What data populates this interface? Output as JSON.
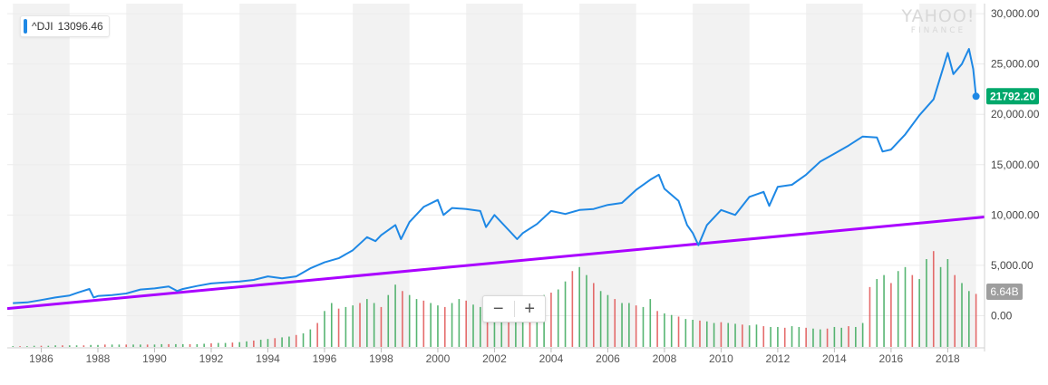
{
  "legend": {
    "symbol": "^DJI",
    "value": "13096.46",
    "color": "#1e88e5"
  },
  "brand": {
    "line1": "YAHOO!",
    "line2": "FINANCE"
  },
  "zoom": {
    "minus_label": "−",
    "plus_label": "+"
  },
  "last_price_label": "21792.20",
  "volume_label": "6.64B",
  "colors": {
    "price_line": "#1e88e5",
    "trend_line": "#aa00ff",
    "last_price_badge": "#00a86b",
    "volume_badge": "#9e9e9e",
    "volume_up": "#3aa859",
    "volume_down": "#e05252",
    "band_shade": "#f2f2f2"
  },
  "chart_data": {
    "type": "line",
    "x_axis": {
      "tick_labels": [
        "1986",
        "1988",
        "1990",
        "1992",
        "1994",
        "1996",
        "1998",
        "2000",
        "2002",
        "2004",
        "2006",
        "2008",
        "2010",
        "2012",
        "2014",
        "2016",
        "2018"
      ],
      "xlim": [
        1984.8,
        2019.3
      ],
      "alternating_bands": true
    },
    "y_axis": {
      "tick_labels": [
        "30,000.00",
        "25,000.00",
        "20,000.00",
        "15,000.00",
        "10,000.00",
        "5,000.00",
        "0.00"
      ],
      "ylim": [
        -3200,
        31000
      ],
      "position": "right",
      "grid": true
    },
    "legend_position": "top-left",
    "series": [
      {
        "name": "^DJI",
        "points": [
          [
            1985.0,
            1250
          ],
          [
            1985.5,
            1320
          ],
          [
            1986.0,
            1550
          ],
          [
            1986.5,
            1800
          ],
          [
            1987.0,
            2000
          ],
          [
            1987.3,
            2300
          ],
          [
            1987.7,
            2650
          ],
          [
            1987.85,
            1800
          ],
          [
            1988.0,
            1950
          ],
          [
            1988.5,
            2050
          ],
          [
            1989.0,
            2200
          ],
          [
            1989.5,
            2600
          ],
          [
            1990.0,
            2700
          ],
          [
            1990.5,
            2900
          ],
          [
            1990.8,
            2450
          ],
          [
            1991.0,
            2650
          ],
          [
            1991.5,
            2950
          ],
          [
            1992.0,
            3200
          ],
          [
            1992.5,
            3300
          ],
          [
            1993.0,
            3400
          ],
          [
            1993.5,
            3550
          ],
          [
            1994.0,
            3900
          ],
          [
            1994.5,
            3700
          ],
          [
            1995.0,
            3900
          ],
          [
            1995.5,
            4700
          ],
          [
            1996.0,
            5300
          ],
          [
            1996.5,
            5700
          ],
          [
            1997.0,
            6500
          ],
          [
            1997.5,
            7800
          ],
          [
            1997.8,
            7400
          ],
          [
            1998.0,
            8000
          ],
          [
            1998.5,
            9000
          ],
          [
            1998.7,
            7600
          ],
          [
            1999.0,
            9300
          ],
          [
            1999.5,
            10800
          ],
          [
            2000.0,
            11500
          ],
          [
            2000.2,
            10000
          ],
          [
            2000.5,
            10700
          ],
          [
            2001.0,
            10600
          ],
          [
            2001.5,
            10400
          ],
          [
            2001.7,
            8800
          ],
          [
            2002.0,
            10000
          ],
          [
            2002.5,
            8500
          ],
          [
            2002.8,
            7600
          ],
          [
            2003.0,
            8200
          ],
          [
            2003.5,
            9100
          ],
          [
            2004.0,
            10400
          ],
          [
            2004.5,
            10100
          ],
          [
            2005.0,
            10500
          ],
          [
            2005.5,
            10600
          ],
          [
            2006.0,
            11000
          ],
          [
            2006.5,
            11200
          ],
          [
            2007.0,
            12500
          ],
          [
            2007.5,
            13500
          ],
          [
            2007.8,
            14000
          ],
          [
            2008.0,
            12600
          ],
          [
            2008.5,
            11400
          ],
          [
            2008.8,
            9000
          ],
          [
            2009.0,
            8200
          ],
          [
            2009.2,
            7000
          ],
          [
            2009.5,
            9000
          ],
          [
            2010.0,
            10500
          ],
          [
            2010.5,
            10000
          ],
          [
            2011.0,
            11800
          ],
          [
            2011.5,
            12300
          ],
          [
            2011.7,
            10900
          ],
          [
            2012.0,
            12800
          ],
          [
            2012.5,
            13000
          ],
          [
            2013.0,
            14000
          ],
          [
            2013.5,
            15300
          ],
          [
            2014.0,
            16100
          ],
          [
            2014.5,
            16900
          ],
          [
            2015.0,
            17800
          ],
          [
            2015.5,
            17700
          ],
          [
            2015.7,
            16300
          ],
          [
            2016.0,
            16500
          ],
          [
            2016.5,
            18000
          ],
          [
            2017.0,
            19900
          ],
          [
            2017.5,
            21500
          ],
          [
            2018.0,
            26100
          ],
          [
            2018.2,
            24000
          ],
          [
            2018.5,
            25000
          ],
          [
            2018.75,
            26500
          ],
          [
            2018.9,
            24500
          ],
          [
            2019.0,
            21792.2
          ]
        ]
      }
    ],
    "trend_line": {
      "points": [
        [
          1984.8,
          700
        ],
        [
          2019.3,
          9800
        ]
      ]
    },
    "volume": {
      "label_latest": "6.64B",
      "bars_billions": [
        0.1,
        0.1,
        0.1,
        0.15,
        0.15,
        0.15,
        0.2,
        0.2,
        0.2,
        0.2,
        0.2,
        0.25,
        0.25,
        0.3,
        0.3,
        0.3,
        0.3,
        0.3,
        0.3,
        0.3,
        0.3,
        0.35,
        0.35,
        0.35,
        0.35,
        0.35,
        0.35,
        0.4,
        0.45,
        0.5,
        0.5,
        0.55,
        0.6,
        0.7,
        0.8,
        0.9,
        1.0,
        1.1,
        1.2,
        1.3,
        1.5,
        1.7,
        2.2,
        3.0,
        4.5,
        5.5,
        4.8,
        5.0,
        5.2,
        5.5,
        6.0,
        5.5,
        5.0,
        6.5,
        7.8,
        7.0,
        6.5,
        6.0,
        5.8,
        5.5,
        5.2,
        5.0,
        5.5,
        6.0,
        5.8,
        5.3,
        5.0,
        5.2,
        5.6,
        6.0,
        5.8,
        5.5,
        5.4,
        5.6,
        6.2,
        6.5,
        6.8,
        7.2,
        8.2,
        9.5,
        10.0,
        9.0,
        8.0,
        7.0,
        6.5,
        6.0,
        5.5,
        5.5,
        5.2,
        5.0,
        6.0,
        4.5,
        4.2,
        4.0,
        3.8,
        3.5,
        3.4,
        3.3,
        3.2,
        3.0,
        3.1,
        3.0,
        2.9,
        2.8,
        2.7,
        2.8,
        2.6,
        2.5,
        2.5,
        2.4,
        2.6,
        2.5,
        2.4,
        2.3,
        2.2,
        2.3,
        2.5,
        2.4,
        2.6,
        2.5,
        3.0,
        7.5,
        8.5,
        9.0,
        8.0,
        9.5,
        10.0,
        9.0,
        8.5,
        11.0,
        12.0,
        10.0,
        11.0,
        9.0,
        8.0,
        7.0,
        6.64
      ]
    }
  }
}
